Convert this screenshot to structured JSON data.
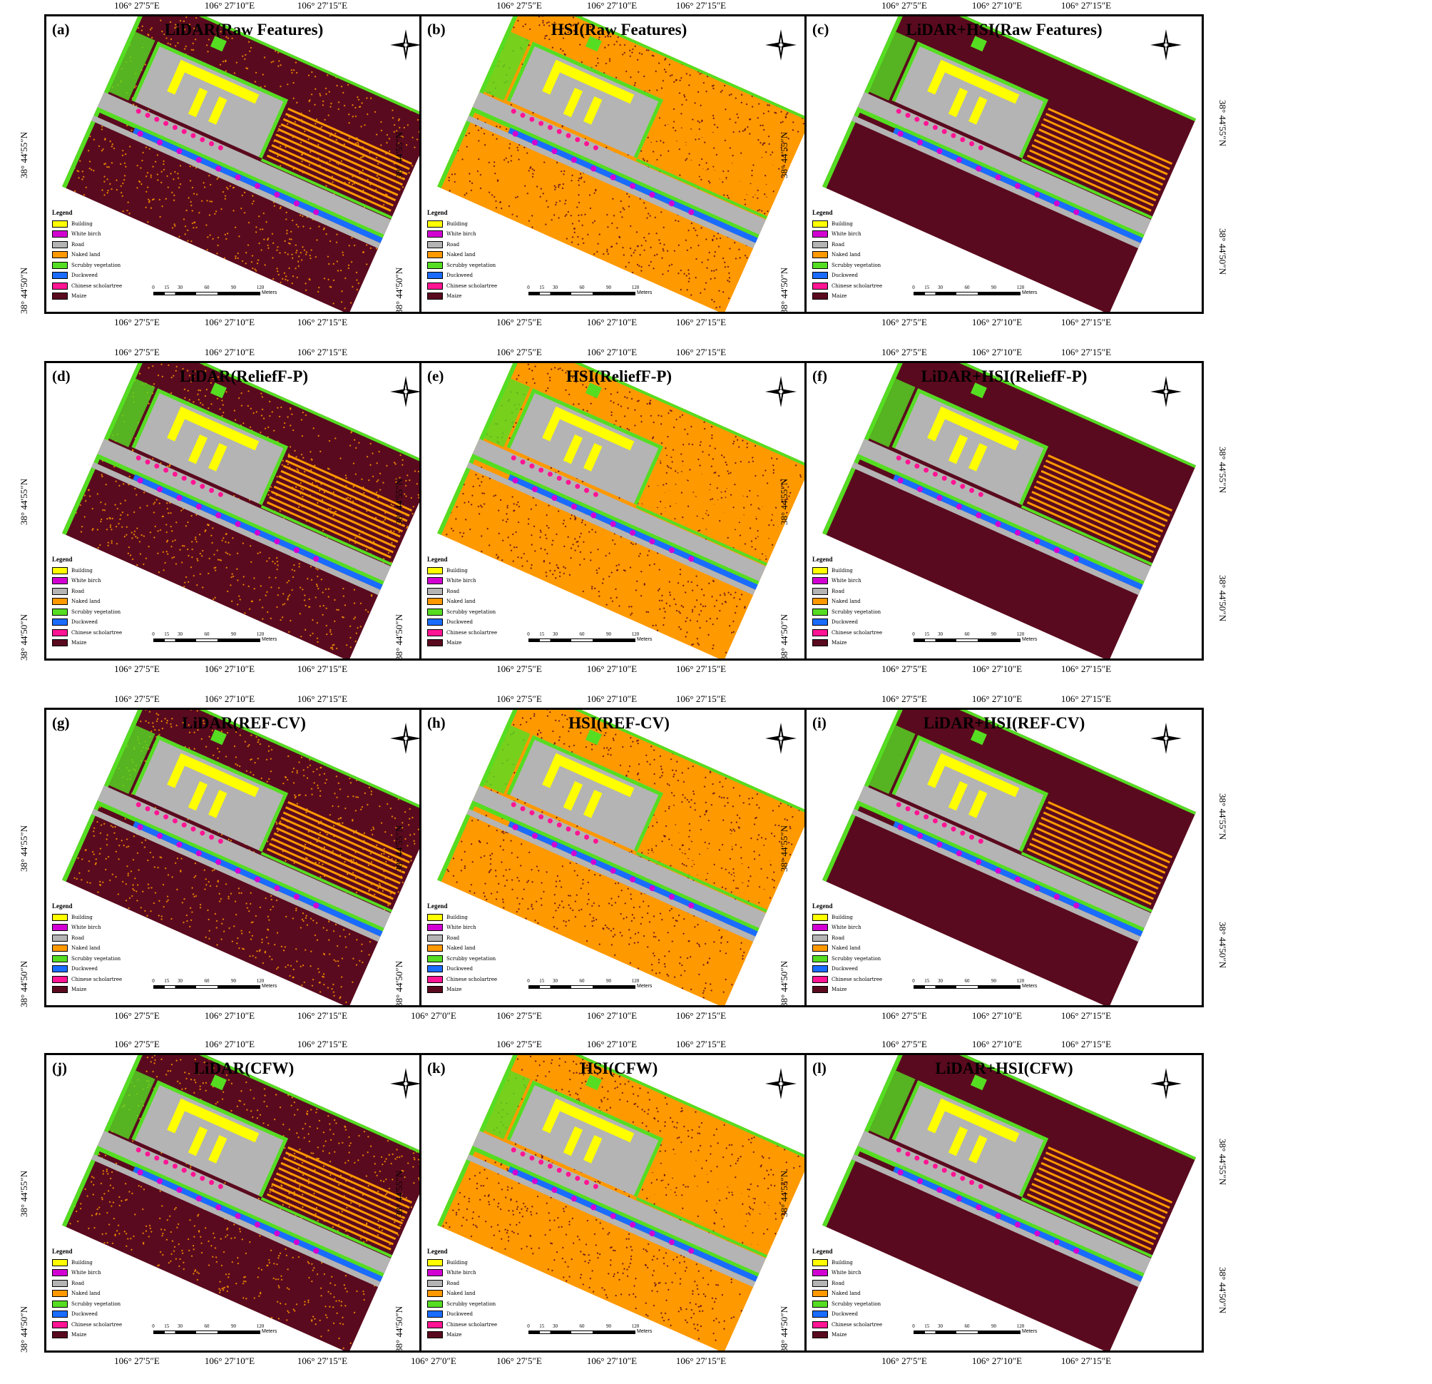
{
  "colors": {
    "building": "#ffff00",
    "white_birch": "#d200d2",
    "road": "#b4b4b4",
    "naked_land": "#ff9900",
    "scrubby_vegetation": "#55dd22",
    "duckweed": "#1a6cff",
    "chinese_scholartree": "#ff1493",
    "maize": "#5a0a1e",
    "frame": "#000000"
  },
  "legend": {
    "title": "Legend",
    "items": [
      {
        "label": "Building",
        "color": "#ffff00"
      },
      {
        "label": "White birch",
        "color": "#d200d2"
      },
      {
        "label": "Road",
        "color": "#b4b4b4"
      },
      {
        "label": "Naked land",
        "color": "#ff9900"
      },
      {
        "label": "Scrubby vegetation",
        "color": "#55dd22"
      },
      {
        "label": "Duckweed",
        "color": "#1a6cff"
      },
      {
        "label": "Chinese scholartree",
        "color": "#ff1493"
      },
      {
        "label": "Maize",
        "color": "#5a0a1e"
      }
    ]
  },
  "scale": {
    "ticks": [
      "0",
      "15",
      "30",
      "60",
      "90",
      "120"
    ],
    "unit": "Meters"
  },
  "compass": "north-arrow",
  "lat_labels": [
    "38° 44′55″N",
    "38° 44′50″N"
  ],
  "panels": [
    {
      "id": "(a)",
      "title": "LiDAR(Raw Features)",
      "base": "lidar",
      "lon_top": [
        "106° 27′5″E",
        "106° 27′10″E",
        "106° 27′15″E"
      ],
      "lon_bottom": [
        "106° 27′5″E",
        "106° 27′10″E",
        "106° 27′15″E"
      ]
    },
    {
      "id": "(b)",
      "title": "HSI(Raw Features)",
      "base": "hsi",
      "lon_top": [
        "106° 27′5″E",
        "106° 27′10″E",
        "106° 27′15″E"
      ],
      "lon_bottom": [
        "106° 27′5″E",
        "106° 27′10″E",
        "106° 27′15″E"
      ]
    },
    {
      "id": "(c)",
      "title": "LiDAR+HSI(Raw Features)",
      "base": "fused",
      "lon_top": [
        "106° 27′5″E",
        "106° 27′10″E",
        "106° 27′15″E"
      ],
      "lon_bottom": [
        "106° 27′5″E",
        "106° 27′10″E",
        "106° 27′15″E"
      ]
    },
    {
      "id": "(d)",
      "title": "LiDAR(ReliefF-P)",
      "base": "lidar",
      "lon_top": [
        "106° 27′5″E",
        "106° 27′10″E",
        "106° 27′15″E"
      ],
      "lon_bottom": [
        "106° 27′5″E",
        "106° 27′10″E",
        "106° 27′15″E"
      ]
    },
    {
      "id": "(e)",
      "title": "HSI(ReliefF-P)",
      "base": "hsi",
      "lon_top": [
        "106° 27′5″E",
        "106° 27′10″E",
        "106° 27′15″E"
      ],
      "lon_bottom": [
        "106° 27′5″E",
        "106° 27′10″E",
        "106° 27′15″E"
      ]
    },
    {
      "id": "(f)",
      "title": "LiDAR+HSI(ReliefF-P)",
      "base": "fused",
      "lon_top": [
        "106° 27′5″E",
        "106° 27′10″E",
        "106° 27′15″E"
      ],
      "lon_bottom": [
        "106° 27′5″E",
        "106° 27′10″E",
        "106° 27′15″E"
      ]
    },
    {
      "id": "(g)",
      "title": "LiDAR(REF-CV)",
      "base": "lidar",
      "lon_top": [
        "106° 27′5″E",
        "106° 27′10″E",
        "106° 27′15″E"
      ],
      "lon_bottom": [
        "106° 27′5″E",
        "106° 27′10″E",
        "106° 27′15″E"
      ]
    },
    {
      "id": "(h)",
      "title": "HSI(REF-CV)",
      "base": "hsi",
      "lon_top": [
        "106° 27′5″E",
        "106° 27′10″E",
        "106° 27′15″E"
      ],
      "lon_bottom": [
        "106° 27′0″E",
        "106° 27′5″E",
        "106° 27′10″E",
        "106° 27′15″E"
      ]
    },
    {
      "id": "(i)",
      "title": "LiDAR+HSI(REF-CV)",
      "base": "fused",
      "lon_top": [
        "106° 27′5″E",
        "106° 27′10″E",
        "106° 27′15″E"
      ],
      "lon_bottom": [
        "106° 27′5″E",
        "106° 27′10″E",
        "106° 27′15″E"
      ]
    },
    {
      "id": "(j)",
      "title": "LiDAR(CFW)",
      "base": "lidar",
      "lon_top": [
        "106° 27′5″E",
        "106° 27′10″E",
        "106° 27′15″E"
      ],
      "lon_bottom": [
        "106° 27′5″E",
        "106° 27′10″E",
        "106° 27′15″E"
      ]
    },
    {
      "id": "(k)",
      "title": "HSI(CFW)",
      "base": "hsi",
      "lon_top": [
        "106° 27′5″E",
        "106° 27′10″E",
        "106° 27′15″E"
      ],
      "lon_bottom": [
        "106° 27′0″E",
        "106° 27′5″E",
        "106° 27′10″E",
        "106° 27′15″E"
      ]
    },
    {
      "id": "(l)",
      "title": "LiDAR+HSI(CFW)",
      "base": "fused",
      "lon_top": [
        "106° 27′5″E",
        "106° 27′10″E",
        "106° 27′15″E"
      ],
      "lon_bottom": [
        "106° 27′5″E",
        "106° 27′10″E",
        "106° 27′15″E"
      ]
    }
  ]
}
